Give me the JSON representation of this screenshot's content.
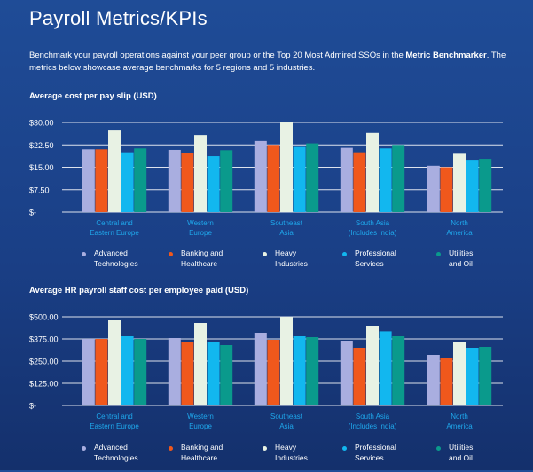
{
  "page": {
    "title": "Payroll Metrics/KPIs",
    "intro_before": "Benchmark your payroll operations against your peer group or the Top 20 Most Admired SSOs in the ",
    "intro_link": "Metric Benchmarker",
    "intro_after": ". The metrics below showcase average benchmarks for 5 regions and 5 industries."
  },
  "colors": {
    "Advanced Technologies": "#a9aee0",
    "Banking and Healthcare": "#f0581c",
    "Heavy Industries": "#e8f2e4",
    "Professional Services": "#12b7ef",
    "Utilities and Oil": "#0a9a8c",
    "category_label": "#1fa8ec",
    "grid": "#ffffff"
  },
  "legend": [
    {
      "key": "Advanced Technologies",
      "label": "Advanced\nTechnologies"
    },
    {
      "key": "Banking and Healthcare",
      "label": "Banking and\nHealthcare"
    },
    {
      "key": "Heavy Industries",
      "label": "Heavy\nIndustries"
    },
    {
      "key": "Professional Services",
      "label": "Professional\nServices"
    },
    {
      "key": "Utilities and Oil",
      "label": "Utilities\nand Oil"
    }
  ],
  "chart_data": [
    {
      "type": "bar",
      "title": "Average cost per pay slip (USD)",
      "categories": [
        "Central and\nEastern Europe",
        "Western\nEurope",
        "Southeast\nAsia",
        "South Asia\n(Includes India)",
        "North\nAmerica"
      ],
      "yticks": [
        "$-",
        "$7.50",
        "$15.00",
        "$22.50",
        "$30.00"
      ],
      "ylim": [
        0,
        30
      ],
      "grid": true,
      "legend_position": "bottom",
      "series": [
        {
          "name": "Advanced Technologies",
          "values": [
            21.0,
            20.8,
            23.8,
            21.5,
            15.5
          ]
        },
        {
          "name": "Banking and Healthcare",
          "values": [
            21.0,
            19.7,
            22.5,
            20.0,
            15.0
          ]
        },
        {
          "name": "Heavy Industries",
          "values": [
            27.3,
            25.8,
            30.0,
            26.5,
            19.5
          ]
        },
        {
          "name": "Professional Services",
          "values": [
            20.0,
            18.7,
            21.8,
            21.3,
            17.5
          ]
        },
        {
          "name": "Utilities and Oil",
          "values": [
            21.3,
            20.7,
            23.0,
            22.5,
            17.8
          ]
        }
      ]
    },
    {
      "type": "bar",
      "title": "Average HR payroll staff cost per employee paid (USD)",
      "categories": [
        "Central and\nEastern Europe",
        "Western\nEurope",
        "Southeast\nAsia",
        "South Asia\n(Includes India)",
        "North\nAmerica"
      ],
      "yticks": [
        "$-",
        "$125.00",
        "$250.00",
        "$375.00",
        "$500.00"
      ],
      "ylim": [
        0,
        500
      ],
      "grid": true,
      "legend_position": "bottom",
      "series": [
        {
          "name": "Advanced Technologies",
          "values": [
            375,
            380,
            410,
            365,
            285
          ]
        },
        {
          "name": "Banking and Healthcare",
          "values": [
            375,
            355,
            370,
            325,
            270
          ]
        },
        {
          "name": "Heavy Industries",
          "values": [
            480,
            465,
            500,
            448,
            360
          ]
        },
        {
          "name": "Professional Services",
          "values": [
            390,
            360,
            390,
            418,
            325
          ]
        },
        {
          "name": "Utilities and Oil",
          "values": [
            375,
            340,
            385,
            390,
            330
          ]
        }
      ]
    }
  ]
}
